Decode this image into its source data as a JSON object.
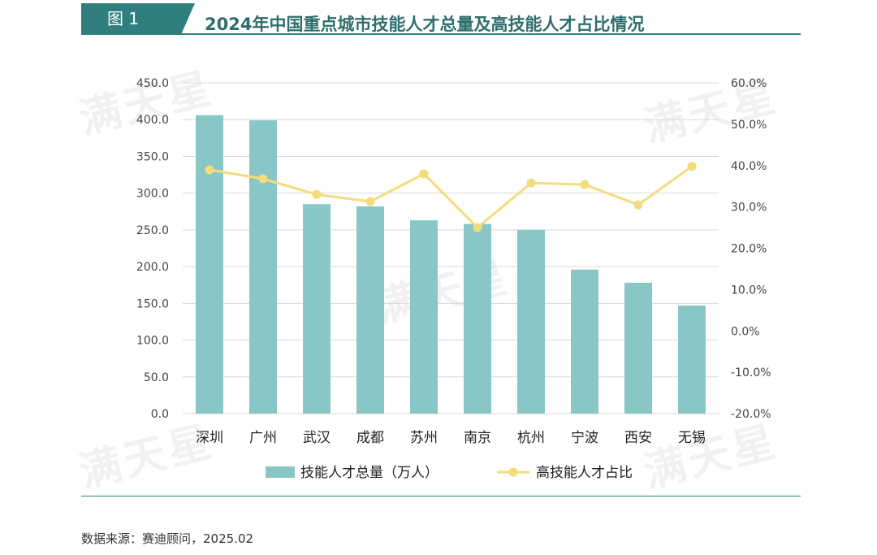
{
  "figure_label": "图 1",
  "watermark_text": "满天星",
  "source": "数据来源：赛迪顾问，2025.02",
  "colors": {
    "bar": "#88c7c6",
    "line": "#f4dc7c",
    "accent": "#2e7f7d",
    "title": "#2e6e6c"
  },
  "chart_data": {
    "type": "bar",
    "title": "2024年中国重点城市技能人才总量及高技能人才占比情况",
    "categories": [
      "深圳",
      "广州",
      "武汉",
      "成都",
      "苏州",
      "南京",
      "杭州",
      "宁波",
      "西安",
      "无锡"
    ],
    "series": [
      {
        "name": "技能人才总量（万人）",
        "kind": "bar",
        "axis": "left",
        "values": [
          406,
          399,
          285,
          282,
          263,
          258,
          250,
          196,
          178,
          147
        ]
      },
      {
        "name": "高技能人才占比",
        "kind": "line",
        "axis": "right",
        "values": [
          39.0,
          36.8,
          33.0,
          31.3,
          38.0,
          25.0,
          35.8,
          35.4,
          30.5,
          39.8
        ]
      }
    ],
    "y_left": {
      "min": 0,
      "max": 450,
      "step": 50,
      "ticks": [
        "0.0",
        "50.0",
        "100.0",
        "150.0",
        "200.0",
        "250.0",
        "300.0",
        "350.0",
        "400.0",
        "450.0"
      ]
    },
    "y_right": {
      "min": -20,
      "max": 60,
      "step": 10,
      "ticks": [
        "-20.0%",
        "-10.0%",
        "0.0%",
        "10.0%",
        "20.0%",
        "30.0%",
        "40.0%",
        "50.0%",
        "60.0%"
      ]
    },
    "grid": true,
    "legend_position": "bottom-center",
    "legend": [
      "技能人才总量（万人）",
      "高技能人才占比"
    ]
  }
}
